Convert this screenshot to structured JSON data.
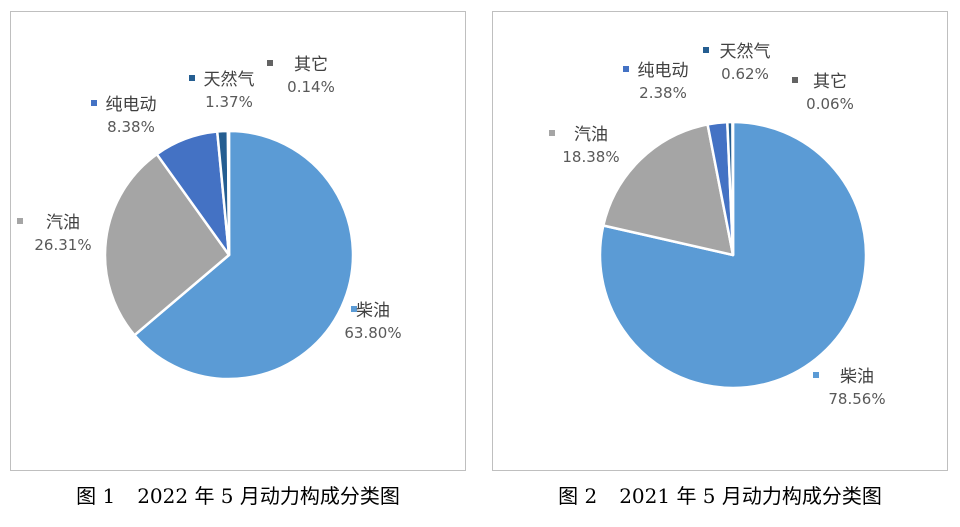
{
  "colors": {
    "柴油": "#5b9bd5",
    "汽油": "#a5a5a5",
    "纯电动": "#4472c4",
    "天然气": "#255e91",
    "其它": "#636363"
  },
  "chart_data": [
    {
      "type": "pie",
      "caption_num": "图 1",
      "caption_text": "2022 年 5 月动力构成分类图",
      "slices": [
        {
          "name": "柴油",
          "value": 63.8,
          "label": "63.80%"
        },
        {
          "name": "汽油",
          "value": 26.31,
          "label": "26.31%"
        },
        {
          "name": "纯电动",
          "value": 8.38,
          "label": "8.38%"
        },
        {
          "name": "天然气",
          "value": 1.37,
          "label": "1.37%"
        },
        {
          "name": "其它",
          "value": 0.14,
          "label": "0.14%"
        }
      ]
    },
    {
      "type": "pie",
      "caption_num": "图 2",
      "caption_text": "2021 年 5 月动力构成分类图",
      "slices": [
        {
          "name": "柴油",
          "value": 78.56,
          "label": "78.56%"
        },
        {
          "name": "汽油",
          "value": 18.38,
          "label": "18.38%"
        },
        {
          "name": "纯电动",
          "value": 2.38,
          "label": "2.38%"
        },
        {
          "name": "天然气",
          "value": 0.62,
          "label": "0.62%"
        },
        {
          "name": "其它",
          "value": 0.06,
          "label": "0.06%"
        }
      ]
    }
  ]
}
